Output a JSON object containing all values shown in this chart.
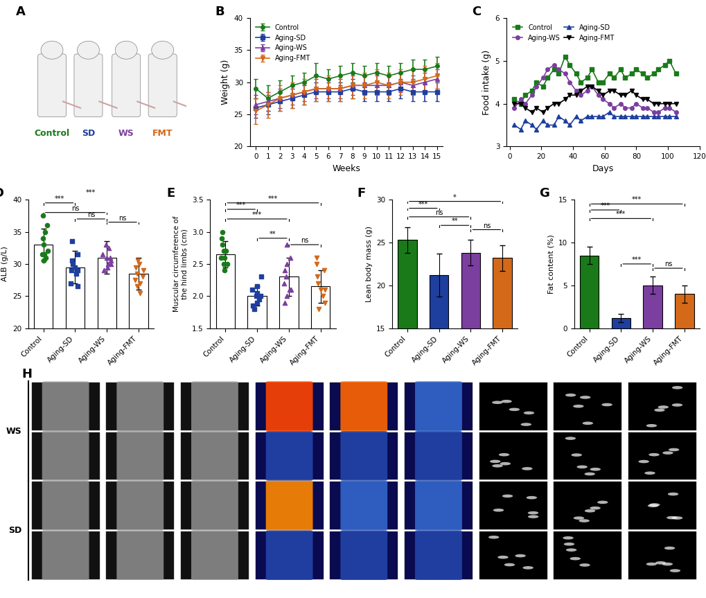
{
  "panel_labels": [
    "A",
    "B",
    "C",
    "D",
    "E",
    "F",
    "G",
    "H"
  ],
  "B_weeks": [
    0,
    1,
    2,
    3,
    4,
    5,
    6,
    7,
    8,
    9,
    10,
    11,
    12,
    13,
    14,
    15
  ],
  "B_control_mean": [
    29.0,
    27.5,
    28.5,
    29.5,
    30.0,
    31.0,
    30.5,
    31.0,
    31.5,
    31.0,
    31.5,
    31.0,
    31.5,
    32.0,
    32.0,
    32.5
  ],
  "B_control_err": [
    1.5,
    2.0,
    1.8,
    1.5,
    1.5,
    2.0,
    1.5,
    1.5,
    1.5,
    1.5,
    1.5,
    1.5,
    1.5,
    1.5,
    1.5,
    1.5
  ],
  "B_sd_mean": [
    26.0,
    26.5,
    27.0,
    27.5,
    28.0,
    28.5,
    28.5,
    28.5,
    29.0,
    28.5,
    28.5,
    28.5,
    29.0,
    28.5,
    28.5,
    28.5
  ],
  "B_sd_err": [
    1.5,
    1.5,
    1.5,
    1.5,
    1.5,
    1.5,
    1.5,
    1.5,
    1.5,
    1.5,
    1.5,
    1.5,
    1.5,
    1.5,
    1.5,
    1.5
  ],
  "B_ws_mean": [
    26.5,
    27.0,
    27.5,
    28.0,
    28.5,
    29.0,
    29.0,
    29.0,
    29.5,
    29.5,
    29.5,
    29.5,
    30.0,
    29.5,
    30.0,
    30.5
  ],
  "B_ws_err": [
    1.5,
    1.5,
    1.5,
    1.5,
    1.5,
    1.5,
    1.5,
    1.5,
    1.5,
    1.5,
    1.5,
    1.5,
    1.5,
    1.5,
    1.5,
    1.5
  ],
  "B_fmt_mean": [
    25.5,
    26.5,
    27.5,
    28.0,
    28.5,
    29.0,
    29.0,
    29.0,
    29.5,
    29.5,
    30.0,
    29.5,
    30.0,
    30.0,
    30.5,
    31.0
  ],
  "B_fmt_err": [
    2.0,
    2.0,
    2.0,
    2.0,
    2.0,
    2.0,
    2.0,
    2.0,
    2.0,
    2.0,
    2.0,
    2.0,
    2.0,
    2.0,
    2.0,
    2.0
  ],
  "C_days": [
    3,
    7,
    10,
    14,
    17,
    21,
    24,
    28,
    31,
    35,
    38,
    42,
    45,
    49,
    52,
    56,
    59,
    63,
    66,
    70,
    73,
    77,
    80,
    84,
    87,
    91,
    94,
    98,
    101,
    105
  ],
  "C_control": [
    4.1,
    4.0,
    4.2,
    4.3,
    4.5,
    4.4,
    4.6,
    4.8,
    4.7,
    5.1,
    4.9,
    4.7,
    4.5,
    4.6,
    4.8,
    4.5,
    4.5,
    4.7,
    4.6,
    4.8,
    4.6,
    4.7,
    4.8,
    4.7,
    4.6,
    4.7,
    4.8,
    4.9,
    5.0,
    4.7
  ],
  "C_sd": [
    3.5,
    3.4,
    3.6,
    3.5,
    3.4,
    3.6,
    3.5,
    3.5,
    3.7,
    3.6,
    3.5,
    3.7,
    3.6,
    3.7,
    3.7,
    3.7,
    3.7,
    3.8,
    3.7,
    3.7,
    3.7,
    3.7,
    3.7,
    3.7,
    3.7,
    3.7,
    3.7,
    3.7,
    3.7,
    3.7
  ],
  "C_ws": [
    3.9,
    4.1,
    4.0,
    4.2,
    4.4,
    4.6,
    4.8,
    4.9,
    4.8,
    4.7,
    4.5,
    4.3,
    4.2,
    4.3,
    4.4,
    4.2,
    4.1,
    4.0,
    3.9,
    4.0,
    3.9,
    3.9,
    4.0,
    3.9,
    3.9,
    3.8,
    3.8,
    3.9,
    3.9,
    3.8
  ],
  "C_fmt": [
    4.0,
    4.0,
    3.9,
    3.8,
    3.9,
    3.8,
    3.9,
    4.0,
    4.0,
    4.1,
    4.2,
    4.2,
    4.3,
    4.4,
    4.4,
    4.3,
    4.2,
    4.3,
    4.3,
    4.2,
    4.2,
    4.3,
    4.2,
    4.1,
    4.1,
    4.0,
    4.0,
    4.0,
    4.0,
    4.0
  ],
  "D_categories": [
    "Control",
    "Aging-SD",
    "Aging-WS",
    "Aging-FMT"
  ],
  "D_means": [
    33.0,
    29.5,
    31.0,
    28.5
  ],
  "D_errors": [
    2.5,
    2.5,
    2.5,
    2.5
  ],
  "D_colors": [
    "#1a7a1a",
    "#1f3f9e",
    "#7b3fa0",
    "#d4691a"
  ],
  "D_scatter_control": [
    30.5,
    31.0,
    31.5,
    33.0,
    34.0,
    35.0,
    37.5,
    36.0,
    32.0,
    31.5
  ],
  "D_scatter_sd": [
    26.5,
    27.0,
    28.5,
    29.0,
    29.5,
    30.0,
    30.5,
    31.5,
    33.5,
    29.0
  ],
  "D_scatter_ws": [
    29.5,
    30.0,
    30.5,
    31.0,
    31.5,
    32.5,
    33.0,
    31.0,
    30.0,
    29.0
  ],
  "D_scatter_fmt": [
    25.5,
    26.5,
    27.0,
    27.5,
    28.0,
    28.5,
    29.0,
    29.5,
    30.0,
    30.5
  ],
  "D_ylim": [
    20,
    40
  ],
  "D_yticks": [
    20,
    25,
    30,
    35,
    40
  ],
  "D_ylabel": "ALB (g/L)",
  "E_categories": [
    "Control",
    "Aging-SD",
    "Aging-WS",
    "Aging-FMT"
  ],
  "E_means": [
    2.65,
    2.0,
    2.3,
    2.15
  ],
  "E_errors": [
    0.2,
    0.15,
    0.3,
    0.25
  ],
  "E_colors": [
    "#1a7a1a",
    "#1f3f9e",
    "#7b3fa0",
    "#d4691a"
  ],
  "E_scatter_control": [
    2.4,
    2.5,
    2.6,
    2.7,
    2.8,
    2.9,
    3.0,
    2.5,
    2.6,
    2.7
  ],
  "E_scatter_sd": [
    1.8,
    1.85,
    1.9,
    1.95,
    2.0,
    2.05,
    2.1,
    2.15,
    2.3,
    2.0
  ],
  "E_scatter_ws": [
    1.9,
    2.0,
    2.1,
    2.2,
    2.3,
    2.4,
    2.5,
    2.6,
    2.8,
    2.1
  ],
  "E_scatter_fmt": [
    1.8,
    1.9,
    2.0,
    2.1,
    2.2,
    2.3,
    2.4,
    2.5,
    2.6,
    2.1
  ],
  "E_ylim": [
    1.5,
    3.5
  ],
  "E_yticks": [
    1.5,
    2.0,
    2.5,
    3.0,
    3.5
  ],
  "E_ylabel": "Muscular circumference of\nthe hind limbs (cm)",
  "F_categories": [
    "Control",
    "Aging-SD",
    "Aging-WS",
    "Aging-FMT"
  ],
  "F_means": [
    25.3,
    21.2,
    23.8,
    23.2
  ],
  "F_errors": [
    1.5,
    2.5,
    1.5,
    1.5
  ],
  "F_colors": [
    "#1a7a1a",
    "#1f3f9e",
    "#7b3fa0",
    "#d4691a"
  ],
  "F_ylim": [
    15,
    30
  ],
  "F_yticks": [
    15,
    20,
    25,
    30
  ],
  "F_ylabel": "Lean body mass (g)",
  "G_categories": [
    "Control",
    "Aging-SD",
    "Aging-WS",
    "Aging-FMT"
  ],
  "G_means": [
    8.5,
    1.2,
    5.0,
    4.0
  ],
  "G_errors": [
    1.0,
    0.5,
    1.0,
    1.0
  ],
  "G_colors": [
    "#1a7a1a",
    "#1f3f9e",
    "#7b3fa0",
    "#d4691a"
  ],
  "G_ylim": [
    0,
    15
  ],
  "G_yticks": [
    0,
    5,
    10,
    15
  ],
  "G_ylabel": "Fat content (%)",
  "colors": {
    "control": "#1a7a1a",
    "sd": "#1f3f9e",
    "ws": "#7b3fa0",
    "fmt": "#d4691a",
    "black": "#000000"
  },
  "H_label_rows": [
    "",
    "WS",
    "",
    "SD",
    ""
  ],
  "A_label_colors": [
    "#1a7a1a",
    "#1f3f9e",
    "#7b3fa0",
    "#d4691a"
  ],
  "A_labels": [
    "Control",
    "SD",
    "WS",
    "FMT"
  ]
}
